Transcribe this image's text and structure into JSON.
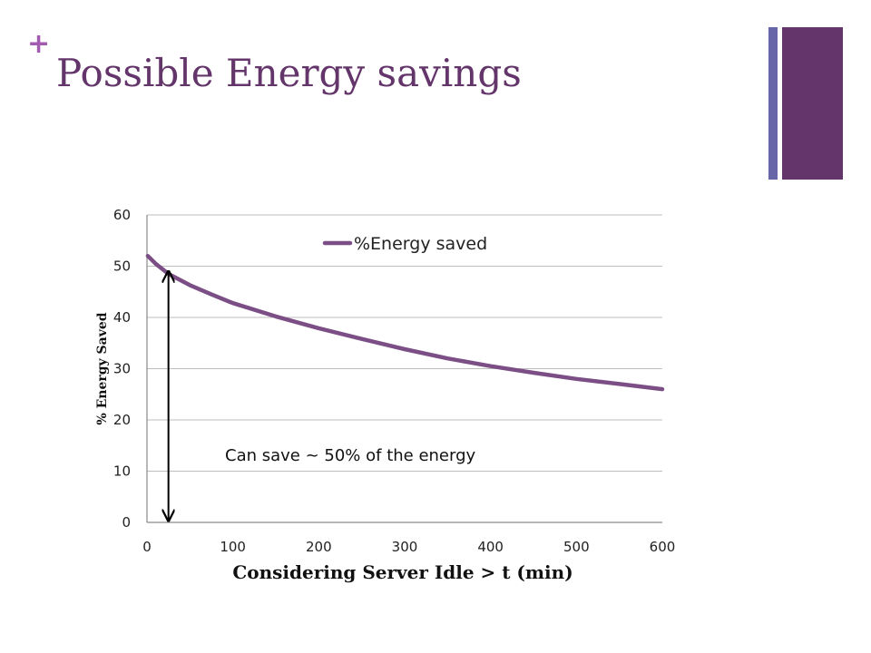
{
  "slide": {
    "plus": "+",
    "title": "Possible Energy savings"
  },
  "colors": {
    "title": "#64356a",
    "plus": "#a25bb0",
    "accent_thin": "#6666a8",
    "accent_thick": "#64356a",
    "series": "#7b4e85"
  },
  "chart_data": {
    "type": "line",
    "xlabel": "Considering Server Idle > t (min)",
    "ylabel": "% Energy Saved",
    "xlim": [
      0,
      600
    ],
    "ylim": [
      0,
      60
    ],
    "xticks": [
      0,
      100,
      200,
      300,
      400,
      500,
      600
    ],
    "yticks": [
      0,
      10,
      20,
      30,
      40,
      50,
      60
    ],
    "grid": "horizontal",
    "legend_position": "top-center",
    "series": [
      {
        "name": "%Energy saved",
        "x": [
          1,
          10,
          25,
          50,
          75,
          100,
          150,
          200,
          250,
          300,
          350,
          400,
          450,
          500,
          550,
          600
        ],
        "y": [
          52,
          50.5,
          48.5,
          46.3,
          44.5,
          42.8,
          40.2,
          37.9,
          35.8,
          33.8,
          32.0,
          30.5,
          29.2,
          28.0,
          27.0,
          26.0
        ]
      }
    ],
    "annotations": [
      {
        "text": "Can save ~ 50% of the energy",
        "arrow_x": 25,
        "arrow_from": 0,
        "arrow_to": 49
      }
    ]
  }
}
